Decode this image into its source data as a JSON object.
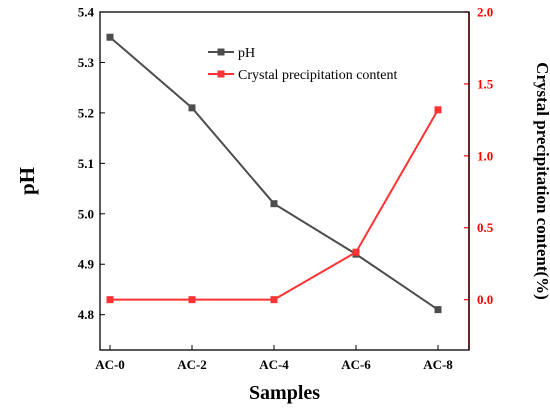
{
  "chart_data": {
    "type": "line",
    "categories": [
      "AC-0",
      "AC-2",
      "AC-4",
      "AC-6",
      "AC-8"
    ],
    "xlabel": "Samples",
    "ylabel_left": "pH",
    "ylabel_right": "Crystal precipitation content(%)",
    "ylim_left": [
      4.73,
      5.4
    ],
    "ylim_right": [
      -0.35,
      2.0
    ],
    "yticks_left": [
      "4.8",
      "4.9",
      "5.0",
      "5.1",
      "5.2",
      "5.3",
      "5.4"
    ],
    "yticks_right": [
      "0.0",
      "0.5",
      "1.0",
      "1.5",
      "2.0"
    ],
    "legend_position": "top-center",
    "series": [
      {
        "name": "pH",
        "axis": "left",
        "color": "#4d4d4d",
        "values": [
          5.35,
          5.21,
          5.02,
          4.92,
          4.81
        ]
      },
      {
        "name": "Crystal precipitation content",
        "axis": "right",
        "color": "#ff3333",
        "values": [
          0.0,
          0.0,
          0.0,
          0.33,
          1.32
        ]
      }
    ]
  }
}
